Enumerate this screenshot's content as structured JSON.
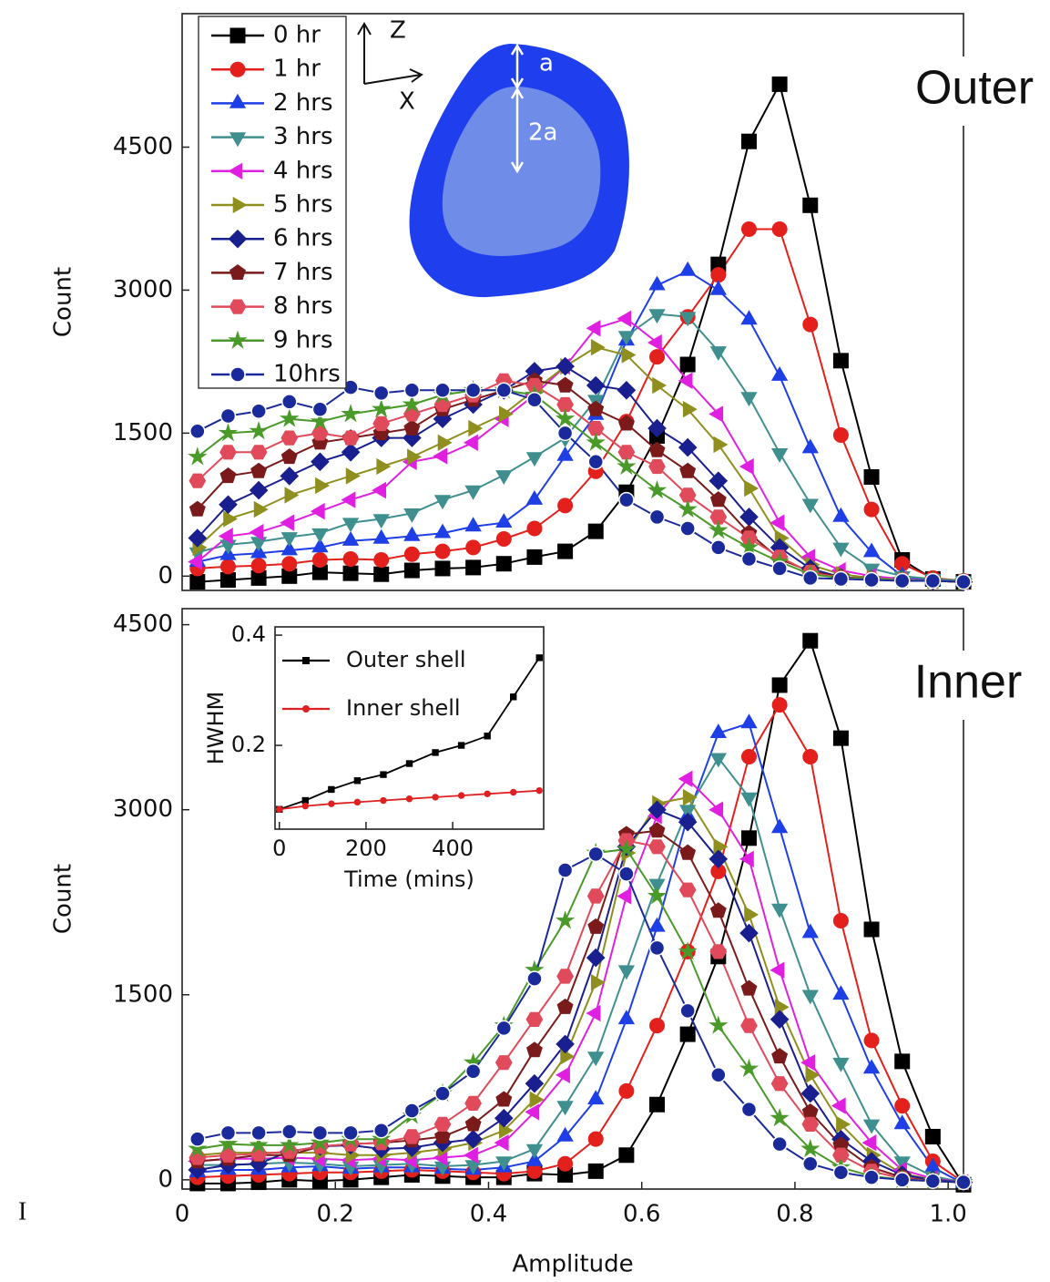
{
  "side_mark": "I",
  "chart_data": [
    {
      "type": "line",
      "ylabel": "Count",
      "annotation": "Outer",
      "diagram_labels": [
        "Z",
        "X",
        "a",
        "2a"
      ],
      "legend": "upper left",
      "xlim": [
        0,
        1.02
      ],
      "ylim": [
        -150,
        5900
      ],
      "yticks": [
        0,
        1500,
        3000,
        4500
      ],
      "x": [
        0.02,
        0.06,
        0.1,
        0.14,
        0.18,
        0.22,
        0.26,
        0.3,
        0.34,
        0.38,
        0.42,
        0.46,
        0.5,
        0.54,
        0.58,
        0.62,
        0.66,
        0.7,
        0.74,
        0.78,
        0.82,
        0.86,
        0.9,
        0.94,
        0.98,
        1.02
      ],
      "series": [
        {
          "name": "0 hr",
          "color": "#000000",
          "marker": "square",
          "values": [
            -60,
            -40,
            -20,
            0,
            40,
            30,
            20,
            60,
            80,
            90,
            130,
            200,
            260,
            470,
            880,
            1470,
            2220,
            3270,
            4560,
            5160,
            3890,
            2260,
            1040,
            170,
            -30,
            -60
          ]
        },
        {
          "name": "1 hr",
          "color": "#e3201c",
          "marker": "circle",
          "values": [
            80,
            100,
            110,
            130,
            170,
            180,
            170,
            230,
            260,
            300,
            390,
            500,
            740,
            1100,
            1620,
            2300,
            2720,
            3160,
            3640,
            3640,
            2640,
            1480,
            700,
            130,
            -20,
            -50
          ]
        },
        {
          "name": "2 hrs",
          "color": "#1f3fe6",
          "marker": "triangle-up",
          "values": [
            150,
            220,
            240,
            270,
            300,
            370,
            390,
            420,
            450,
            520,
            560,
            800,
            1260,
            1690,
            2470,
            3050,
            3200,
            3000,
            2690,
            2100,
            1340,
            620,
            250,
            0,
            -50,
            -60
          ]
        },
        {
          "name": "3 hrs",
          "color": "#3f8f8f",
          "marker": "triangle-down",
          "values": [
            250,
            330,
            360,
            410,
            450,
            560,
            600,
            660,
            800,
            900,
            1060,
            1250,
            1450,
            1850,
            2520,
            2750,
            2720,
            2360,
            1880,
            1290,
            760,
            300,
            80,
            0,
            -30,
            -50
          ]
        },
        {
          "name": "4 hrs",
          "color": "#e020e0",
          "marker": "triangle-left",
          "values": [
            150,
            420,
            460,
            560,
            680,
            800,
            900,
            1200,
            1260,
            1400,
            1650,
            1900,
            2200,
            2600,
            2700,
            2450,
            2050,
            1700,
            1150,
            560,
            200,
            60,
            0,
            -30,
            -50,
            -60
          ]
        },
        {
          "name": "5 hrs",
          "color": "#8f8f1f",
          "marker": "triangle-right",
          "values": [
            300,
            600,
            700,
            850,
            950,
            1050,
            1150,
            1250,
            1400,
            1550,
            1700,
            1950,
            2200,
            2400,
            2320,
            2000,
            1750,
            1380,
            920,
            400,
            120,
            20,
            -20,
            -40,
            -50,
            -60
          ]
        },
        {
          "name": "6 hrs",
          "color": "#1a1f8f",
          "marker": "diamond",
          "values": [
            400,
            750,
            900,
            1050,
            1200,
            1300,
            1450,
            1450,
            1650,
            1800,
            1950,
            2150,
            2200,
            2000,
            1950,
            1550,
            1350,
            1000,
            620,
            300,
            80,
            -10,
            -30,
            -40,
            -50,
            -60
          ]
        },
        {
          "name": "7 hrs",
          "color": "#7a1a1a",
          "marker": "pentagon",
          "values": [
            700,
            1050,
            1100,
            1250,
            1400,
            1450,
            1500,
            1550,
            1750,
            1850,
            1950,
            2050,
            2000,
            1750,
            1600,
            1320,
            1100,
            800,
            450,
            180,
            50,
            -10,
            -30,
            -40,
            -50,
            -60
          ]
        },
        {
          "name": "8 hrs",
          "color": "#e04a5a",
          "marker": "hexagon",
          "values": [
            1000,
            1300,
            1300,
            1450,
            1500,
            1450,
            1600,
            1700,
            1800,
            1900,
            2050,
            2000,
            1800,
            1550,
            1300,
            1150,
            850,
            620,
            400,
            200,
            40,
            -20,
            -30,
            -40,
            -50,
            -60
          ]
        },
        {
          "name": "9 hrs",
          "color": "#4a9a2a",
          "marker": "star",
          "values": [
            1250,
            1500,
            1520,
            1650,
            1620,
            1700,
            1750,
            1800,
            1900,
            1950,
            1950,
            1900,
            1650,
            1400,
            1150,
            900,
            700,
            480,
            300,
            150,
            20,
            -20,
            -30,
            -40,
            -50,
            -60
          ]
        },
        {
          "name": "10hrs",
          "color": "#1a2a9a",
          "marker": "sphere",
          "values": [
            1520,
            1680,
            1730,
            1830,
            1750,
            1980,
            1920,
            1950,
            1950,
            1950,
            1950,
            1850,
            1500,
            1200,
            800,
            620,
            500,
            300,
            180,
            80,
            -20,
            -30,
            -40,
            -50,
            -50,
            -60
          ]
        }
      ]
    },
    {
      "type": "line",
      "xlabel": "Amplitude",
      "ylabel": "Count",
      "annotation": "Inner",
      "xlim": [
        0,
        1.02
      ],
      "xticks": [
        0,
        0.2,
        0.4,
        0.6,
        0.8,
        {
          "value": 1,
          "label": "1.0"
        }
      ],
      "ylim": [
        -75,
        4630
      ],
      "yticks": [
        0,
        1500,
        3000,
        4500
      ],
      "x": [
        0.02,
        0.06,
        0.1,
        0.14,
        0.18,
        0.22,
        0.26,
        0.3,
        0.34,
        0.38,
        0.42,
        0.46,
        0.5,
        0.54,
        0.58,
        0.62,
        0.66,
        0.7,
        0.74,
        0.78,
        0.82,
        0.86,
        0.9,
        0.94,
        0.98,
        1.02
      ],
      "series": [
        {
          "name": "0 hr",
          "color": "#000000",
          "marker": "square",
          "values": [
            -30,
            -30,
            -20,
            0,
            -10,
            0,
            20,
            40,
            30,
            20,
            20,
            50,
            40,
            70,
            200,
            610,
            1180,
            1810,
            2770,
            4010,
            4370,
            3580,
            2030,
            960,
            350,
            -40
          ]
        },
        {
          "name": "1 hr",
          "color": "#e3201c",
          "marker": "circle",
          "values": [
            20,
            30,
            40,
            50,
            60,
            60,
            70,
            80,
            70,
            60,
            50,
            70,
            130,
            330,
            720,
            1250,
            1850,
            2500,
            3430,
            3850,
            3430,
            2100,
            1130,
            600,
            150,
            -20
          ]
        },
        {
          "name": "2 hrs",
          "color": "#1f3fe6",
          "marker": "triangle-up",
          "values": [
            60,
            80,
            80,
            100,
            110,
            90,
            100,
            100,
            90,
            80,
            100,
            150,
            350,
            650,
            1300,
            2050,
            2950,
            3620,
            3700,
            2850,
            2000,
            1500,
            900,
            450,
            100,
            -30
          ]
        },
        {
          "name": "3 hrs",
          "color": "#3f8f8f",
          "marker": "triangle-down",
          "values": [
            120,
            120,
            130,
            140,
            130,
            110,
            120,
            130,
            110,
            120,
            150,
            250,
            600,
            1000,
            1700,
            2400,
            3000,
            3420,
            3100,
            2200,
            1500,
            950,
            450,
            150,
            30,
            -20
          ]
        },
        {
          "name": "4 hrs",
          "color": "#e020e0",
          "marker": "triangle-left",
          "values": [
            150,
            170,
            170,
            180,
            170,
            160,
            170,
            160,
            180,
            200,
            300,
            550,
            850,
            1350,
            2300,
            2950,
            3250,
            3000,
            2600,
            1700,
            950,
            600,
            300,
            80,
            10,
            -20
          ]
        },
        {
          "name": "5 hrs",
          "color": "#8f8f1f",
          "marker": "triangle-right",
          "values": [
            200,
            220,
            220,
            220,
            220,
            200,
            200,
            220,
            250,
            300,
            400,
            650,
            1000,
            1600,
            2650,
            3050,
            3100,
            2700,
            2150,
            1400,
            850,
            450,
            200,
            50,
            0,
            -20
          ]
        },
        {
          "name": "6 hrs",
          "color": "#1a1f8f",
          "marker": "diamond",
          "values": [
            80,
            120,
            130,
            230,
            270,
            280,
            250,
            260,
            300,
            330,
            500,
            780,
            1100,
            1800,
            2700,
            3000,
            2900,
            2600,
            2000,
            1300,
            700,
            330,
            150,
            40,
            0,
            -20
          ]
        },
        {
          "name": "7 hrs",
          "color": "#7a1a1a",
          "marker": "pentagon",
          "values": [
            150,
            170,
            200,
            200,
            270,
            290,
            300,
            320,
            350,
            450,
            650,
            1050,
            1400,
            2050,
            2800,
            2830,
            2650,
            2180,
            1550,
            1000,
            550,
            280,
            100,
            20,
            -10,
            -20
          ]
        },
        {
          "name": "8 hrs",
          "color": "#e04a5a",
          "marker": "hexagon",
          "values": [
            180,
            200,
            210,
            230,
            270,
            290,
            300,
            350,
            450,
            620,
            950,
            1300,
            1650,
            2300,
            2750,
            2700,
            2350,
            1850,
            1250,
            780,
            450,
            200,
            70,
            10,
            -10,
            -20
          ]
        },
        {
          "name": "9 hrs",
          "color": "#4a9a2a",
          "marker": "star",
          "values": [
            250,
            290,
            280,
            280,
            300,
            330,
            330,
            520,
            700,
            950,
            1250,
            1700,
            2100,
            2650,
            2680,
            2300,
            1850,
            1250,
            900,
            500,
            250,
            100,
            30,
            0,
            -10,
            -20
          ]
        },
        {
          "name": "10hrs",
          "color": "#1a2a9a",
          "marker": "sphere",
          "values": [
            330,
            380,
            380,
            390,
            380,
            380,
            400,
            560,
            700,
            880,
            1230,
            1630,
            2510,
            2640,
            2480,
            1880,
            1370,
            850,
            570,
            290,
            130,
            60,
            20,
            0,
            -10,
            -20
          ]
        }
      ]
    },
    {
      "type": "line",
      "xlabel": "Time (mins)",
      "ylabel": "HWHM",
      "legend": "upper left",
      "xlim": [
        -10,
        610
      ],
      "xticks": [
        0,
        200,
        400
      ],
      "ylim": [
        0.048,
        0.415
      ],
      "yticks": [
        0.2,
        0.4
      ],
      "x": [
        0,
        60,
        120,
        180,
        240,
        300,
        360,
        420,
        480,
        540,
        600
      ],
      "series": [
        {
          "name": "Outer shell",
          "color": "#000000",
          "marker": "square",
          "values": [
            0.084,
            0.1,
            0.12,
            0.136,
            0.147,
            0.167,
            0.187,
            0.2,
            0.217,
            0.288,
            0.359
          ]
        },
        {
          "name": "Inner shell",
          "color": "#e02020",
          "marker": "circle",
          "values": [
            0.084,
            0.09,
            0.094,
            0.097,
            0.1,
            0.103,
            0.106,
            0.109,
            0.112,
            0.115,
            0.118
          ]
        }
      ]
    }
  ]
}
